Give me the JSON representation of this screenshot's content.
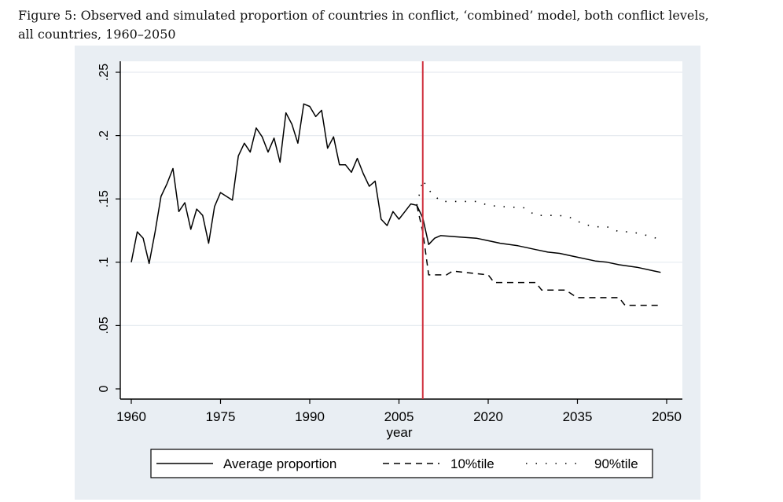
{
  "figure": {
    "caption_line1": "Figure 5: Observed and simulated proportion of countries in conflict, ‘combined’ model, both conflict levels,",
    "caption_line2": "all countries, 1960–2050"
  },
  "chart_data": {
    "type": "line",
    "title": "",
    "xlabel": "year",
    "ylabel": "",
    "xlim": [
      1960,
      2050
    ],
    "ylim": [
      0,
      0.25
    ],
    "x_ticks": [
      1960,
      1975,
      1990,
      2005,
      2020,
      2035,
      2050
    ],
    "x_tick_labels": [
      "1960",
      "1975",
      "1990",
      "2005",
      "2020",
      "2035",
      "2050"
    ],
    "y_ticks": [
      0,
      0.05,
      0.1,
      0.15,
      0.2,
      0.25
    ],
    "y_tick_labels": [
      "0",
      ".05",
      ".1",
      ".15",
      ".2",
      ".25"
    ],
    "grid": true,
    "legend_position": "bottom",
    "reference_line": {
      "x": 2009,
      "color": "#d0303e"
    },
    "series": [
      {
        "name": "Average proportion",
        "style": "solid",
        "x": [
          1960,
          1961,
          1962,
          1963,
          1964,
          1965,
          1966,
          1967,
          1968,
          1969,
          1970,
          1971,
          1972,
          1973,
          1974,
          1975,
          1976,
          1977,
          1978,
          1979,
          1980,
          1981,
          1982,
          1983,
          1984,
          1985,
          1986,
          1987,
          1988,
          1989,
          1990,
          1991,
          1992,
          1993,
          1994,
          1995,
          1996,
          1997,
          1998,
          1999,
          2000,
          2001,
          2002,
          2003,
          2004,
          2005,
          2006,
          2007,
          2008,
          2009,
          2010,
          2011,
          2012,
          2015,
          2018,
          2020,
          2022,
          2025,
          2028,
          2030,
          2032,
          2035,
          2038,
          2040,
          2042,
          2045,
          2048,
          2049
        ],
        "values": [
          0.1,
          0.124,
          0.119,
          0.099,
          0.124,
          0.152,
          0.162,
          0.174,
          0.14,
          0.147,
          0.126,
          0.142,
          0.137,
          0.115,
          0.144,
          0.155,
          0.152,
          0.149,
          0.184,
          0.194,
          0.187,
          0.206,
          0.199,
          0.187,
          0.198,
          0.179,
          0.218,
          0.209,
          0.194,
          0.225,
          0.223,
          0.215,
          0.22,
          0.19,
          0.199,
          0.177,
          0.177,
          0.171,
          0.182,
          0.17,
          0.16,
          0.164,
          0.134,
          0.129,
          0.14,
          0.134,
          0.14,
          0.146,
          0.145,
          0.135,
          0.114,
          0.119,
          0.121,
          0.12,
          0.119,
          0.117,
          0.115,
          0.113,
          0.11,
          0.108,
          0.107,
          0.104,
          0.101,
          0.1,
          0.098,
          0.096,
          0.093,
          0.092
        ]
      },
      {
        "name": "10%tile",
        "style": "dashed",
        "x": [
          2008,
          2009,
          2010,
          2011,
          2013,
          2014,
          2020,
          2021,
          2028,
          2029,
          2033,
          2034,
          2035,
          2036,
          2042,
          2043,
          2049
        ],
        "values": [
          0.145,
          0.124,
          0.09,
          0.09,
          0.09,
          0.093,
          0.09,
          0.084,
          0.084,
          0.078,
          0.078,
          0.075,
          0.072,
          0.072,
          0.072,
          0.066,
          0.066
        ]
      },
      {
        "name": "90%tile",
        "style": "dotted",
        "x": [
          2008,
          2009,
          2010,
          2012,
          2013,
          2018,
          2020,
          2022,
          2026,
          2028,
          2032,
          2034,
          2036,
          2038,
          2040,
          2042,
          2044,
          2046,
          2049
        ],
        "values": [
          0.145,
          0.165,
          0.157,
          0.148,
          0.148,
          0.148,
          0.145,
          0.144,
          0.143,
          0.137,
          0.137,
          0.135,
          0.13,
          0.128,
          0.128,
          0.124,
          0.124,
          0.122,
          0.118
        ]
      }
    ]
  }
}
